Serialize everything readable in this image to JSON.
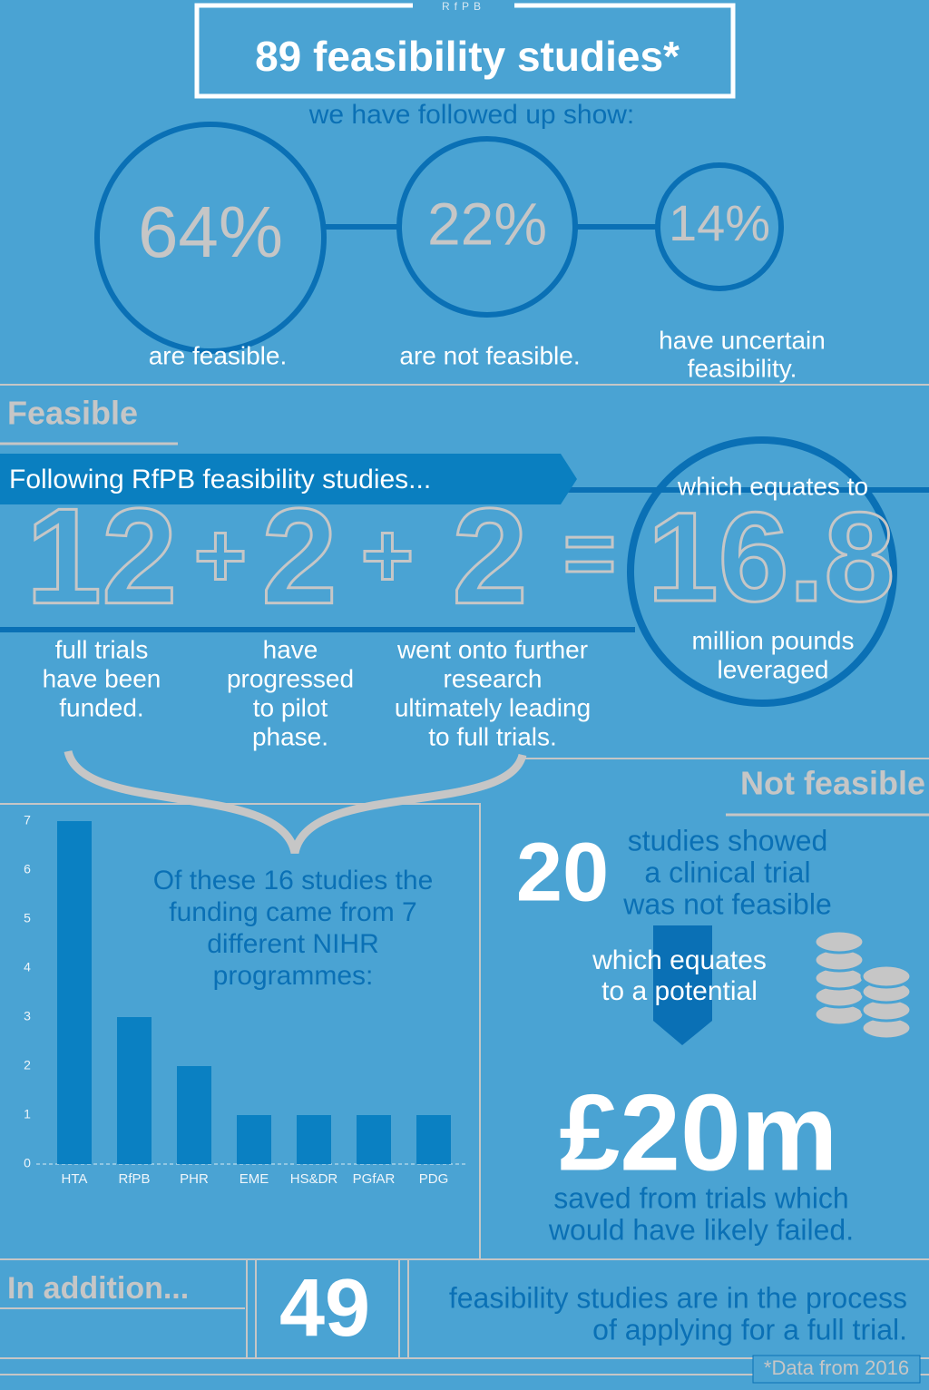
{
  "header": {
    "brand": "RfPB",
    "title": "89 feasibility studies*",
    "subtitle": "we have followed up show:"
  },
  "stats": [
    {
      "value": "64%",
      "label": [
        "are feasible."
      ]
    },
    {
      "value": "22%",
      "label": [
        "are not feasible."
      ]
    },
    {
      "value": "14%",
      "label": [
        "have uncertain",
        "feasibility."
      ]
    }
  ],
  "feasible": {
    "heading": "Feasible",
    "banner": "Following RfPB feasibility studies...",
    "terms": [
      {
        "value": "12",
        "label": [
          "full trials",
          "have been",
          "funded."
        ]
      },
      {
        "value": "2",
        "label": [
          "have",
          "progressed",
          "to pilot",
          "phase."
        ]
      },
      {
        "value": "2",
        "label": [
          "went onto further",
          "research",
          "ultimately leading",
          "to full trials."
        ]
      }
    ],
    "plus": "+",
    "equals": "=",
    "total": {
      "intro": "which equates to",
      "value": "16.8",
      "label": [
        "million pounds",
        "leveraged"
      ]
    },
    "chart_note": [
      "Of these 16 studies the",
      "funding came from 7",
      "different NIHR",
      "programmes:"
    ]
  },
  "chart_data": {
    "type": "bar",
    "categories": [
      "HTA",
      "RfPB",
      "PHR",
      "EME",
      "HS&DR",
      "PGfAR",
      "PDG"
    ],
    "values": [
      7,
      3,
      2,
      1,
      1,
      1,
      1
    ],
    "color": "#0a80c2",
    "ylim": [
      0,
      7
    ],
    "yticks": [
      0,
      1,
      2,
      3,
      4,
      5,
      6,
      7
    ]
  },
  "not_feasible": {
    "heading": "Not feasible",
    "count": "20",
    "description": [
      "studies showed",
      "a clinical trial",
      "was not feasible"
    ],
    "equates": [
      "which equates",
      "to a potential"
    ],
    "amount": "£20m",
    "saved": [
      "saved from trials which",
      "would have likely failed."
    ]
  },
  "addition": {
    "heading": "In addition...",
    "count": "49",
    "description": [
      "feasibility studies are in the process",
      "of applying for a full trial."
    ]
  },
  "footnote": "*Data from 2016"
}
